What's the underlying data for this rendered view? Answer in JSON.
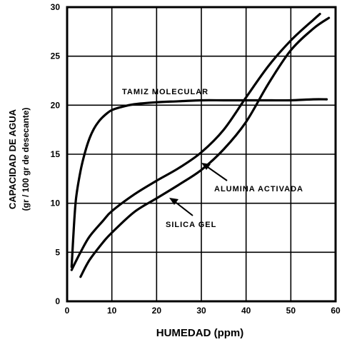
{
  "chart_data": {
    "type": "line",
    "title": "",
    "xlabel": "HUMEDAD  (ppm)",
    "ylabel_line1": "CAPACIDAD  DE  AGUA",
    "ylabel_line2": "(gr / 100 gr de desecante)",
    "xlim": [
      0,
      60
    ],
    "ylim": [
      0,
      30
    ],
    "x_ticks": [
      "0",
      "10",
      "20",
      "30",
      "40",
      "50",
      "60"
    ],
    "y_ticks": [
      "0",
      "5",
      "10",
      "15",
      "20",
      "25",
      "30"
    ],
    "grid": true,
    "series": [
      {
        "name": "TAMIZ MOLECULAR",
        "x": [
          1,
          1.5,
          2,
          3,
          4,
          5,
          6,
          7,
          8,
          9,
          10,
          12,
          15,
          20,
          25,
          30,
          35,
          40,
          45,
          50,
          55,
          58
        ],
        "y": [
          3.5,
          7.5,
          10.5,
          13.3,
          15.2,
          16.6,
          17.6,
          18.3,
          18.8,
          19.2,
          19.5,
          19.8,
          20.1,
          20.3,
          20.4,
          20.5,
          20.5,
          20.5,
          20.5,
          20.5,
          20.6,
          20.6
        ]
      },
      {
        "name": "ALUMINA ACTIVADA",
        "x": [
          1,
          3,
          5,
          8,
          10,
          15,
          20,
          25,
          30,
          35,
          40,
          45,
          50,
          55,
          56.5
        ],
        "y": [
          3.2,
          5.0,
          6.6,
          8.2,
          9.2,
          10.9,
          12.3,
          13.6,
          15.2,
          17.5,
          20.8,
          24.0,
          26.6,
          28.7,
          29.3
        ]
      },
      {
        "name": "SILICA GEL",
        "x": [
          3,
          5,
          8,
          10,
          15,
          20,
          25,
          30,
          35,
          40,
          45,
          50,
          55,
          58.5
        ],
        "y": [
          2.5,
          4.2,
          6.0,
          7.0,
          9.1,
          10.5,
          11.9,
          13.4,
          15.5,
          18.3,
          22.2,
          25.6,
          27.8,
          28.9
        ]
      }
    ],
    "annotations": [
      {
        "text": "TAMIZ  MOLECULAR",
        "series": "TAMIZ MOLECULAR"
      },
      {
        "text": "ALUMINA  ACTIVADA",
        "series": "ALUMINA ACTIVADA",
        "arrow_to": [
          29,
          14.3
        ]
      },
      {
        "text": "SILICA  GEL",
        "series": "SILICA GEL",
        "arrow_to": [
          22,
          11.1
        ]
      }
    ]
  }
}
